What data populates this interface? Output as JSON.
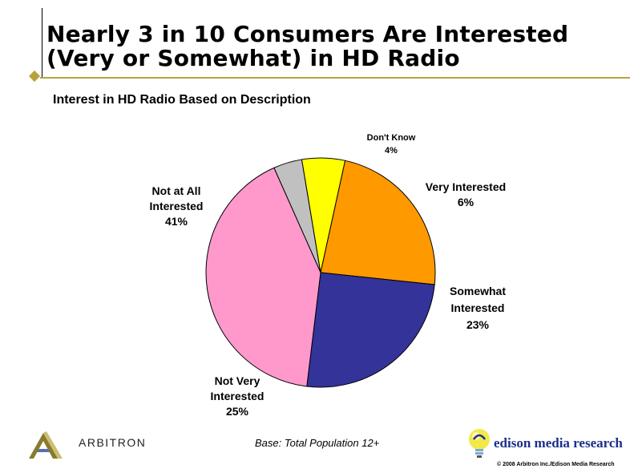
{
  "slide": {
    "title_line1": "Nearly 3 in 10 Consumers Are Interested",
    "title_line2": "(Very or Somewhat) in HD Radio",
    "base_note": "Base:  Total Population 12+",
    "arbitron_logo_text": "ARBITRON",
    "edison_logo_text": "edison media research",
    "copyright": "© 2008 Arbitron Inc./Edison Media Research"
  },
  "colors": {
    "accent_line": "#b5a43a",
    "edison_blue": "#1b2f8a"
  },
  "chart_data": {
    "type": "pie",
    "title": "Interest in HD Radio Based on Description",
    "slices": [
      {
        "name": "Don't Know",
        "value": 4,
        "label_lines": [
          "Don't Know",
          "4%"
        ],
        "color": "#c0c0c0"
      },
      {
        "name": "Very Interested",
        "value": 6,
        "label_lines": [
          "Very Interested",
          "6%"
        ],
        "color": "#ffff00"
      },
      {
        "name": "Somewhat Interested",
        "value": 23,
        "label_lines": [
          "Somewhat",
          "Interested",
          "23%"
        ],
        "color": "#ff9900"
      },
      {
        "name": "Not Very Interested",
        "value": 25,
        "label_lines": [
          "Not Very",
          "Interested",
          "25%"
        ],
        "color": "#333399"
      },
      {
        "name": "Not at All Interested",
        "value": 41,
        "label_lines": [
          "Not at All",
          "Interested",
          "41%"
        ],
        "color": "#ff99cc"
      }
    ],
    "legend": "none",
    "start_angle_deg": -24,
    "direction": "clockwise"
  }
}
